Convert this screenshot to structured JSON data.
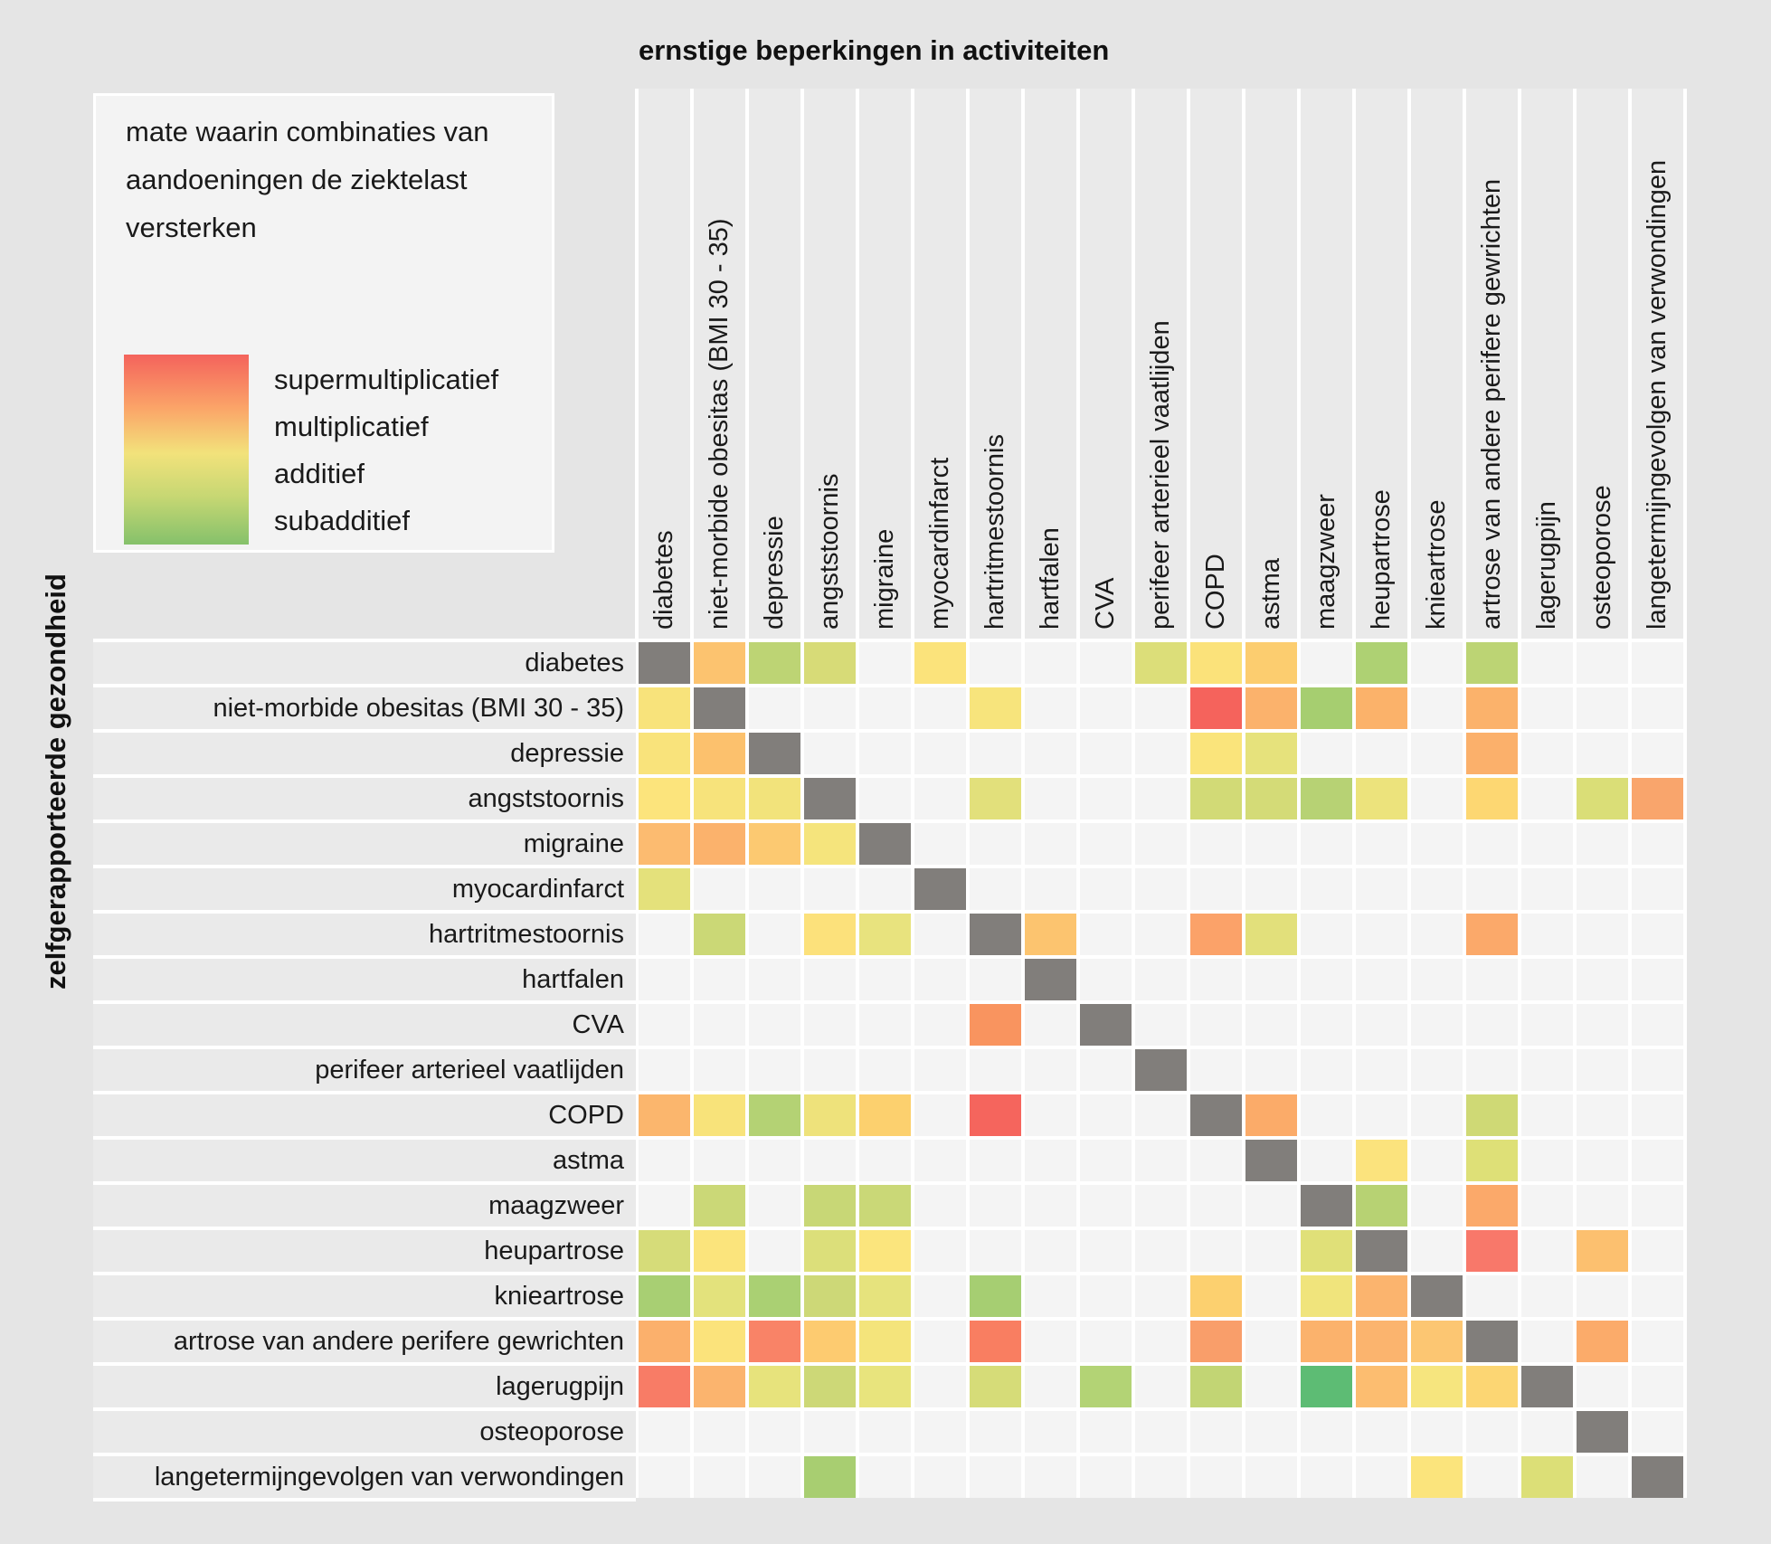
{
  "title": "ernstige beperkingen in activiteiten",
  "y_axis_title": "zelfgerapporteerde gezondheid",
  "legend": {
    "title_lines": [
      "mate waarin combinaties van",
      "aandoeningen de ziektelast",
      "versterken"
    ],
    "items": [
      "supermultiplicatief",
      "multiplicatief",
      "additief",
      "subadditief"
    ],
    "gradient_colors": [
      "#f4635c",
      "#fba468",
      "#f2e27b",
      "#c6d773",
      "#85c16b"
    ]
  },
  "conditions": [
    "diabetes",
    "niet-morbide obesitas (BMI 30 - 35)",
    "depressie",
    "angststoornis",
    "migraine",
    "myocardinfarct",
    "hartritmestoornis",
    "hartfalen",
    "CVA",
    "perifeer arterieel vaatlijden",
    "COPD",
    "astma",
    "maagzweer",
    "heupartrose",
    "knieartrose",
    "artrose van andere perifere gewrichten",
    "lagerugpijn",
    "osteoporose",
    "langetermijngevolgen van verwondingen"
  ],
  "chart_data": {
    "type": "heatmap",
    "title": "ernstige beperkingen in activiteiten",
    "xlabel": "ernstige beperkingen in activiteiten",
    "ylabel": "zelfgerapporteerde gezondheid",
    "legend_position": "top-left",
    "scale_order": [
      "supermultiplicatief",
      "multiplicatief",
      "additief",
      "subadditief"
    ],
    "diagonal_color": "#817e7b",
    "empty_color": "#f4f4f4",
    "cells": [
      [
        1,
        2,
        "#fcc36f",
        "multiplicatief"
      ],
      [
        1,
        3,
        "#bdd474",
        "subadditief"
      ],
      [
        1,
        4,
        "#d7db77",
        "subadditief"
      ],
      [
        1,
        6,
        "#fbe37b",
        "additief"
      ],
      [
        1,
        10,
        "#dcde79",
        "additief"
      ],
      [
        1,
        11,
        "#fbe27a",
        "additief"
      ],
      [
        1,
        12,
        "#fccd6f",
        "multiplicatief"
      ],
      [
        1,
        14,
        "#aed173",
        "subadditief"
      ],
      [
        1,
        16,
        "#bcd474",
        "subadditief"
      ],
      [
        2,
        1,
        "#f8e37b",
        "additief"
      ],
      [
        2,
        7,
        "#f7e47c",
        "additief"
      ],
      [
        2,
        11,
        "#f5635c",
        "supermultiplicatief"
      ],
      [
        2,
        12,
        "#fbb26c",
        "multiplicatief"
      ],
      [
        2,
        13,
        "#a6ce70",
        "subadditief"
      ],
      [
        2,
        14,
        "#fbb26a",
        "multiplicatief"
      ],
      [
        2,
        16,
        "#fbb26b",
        "multiplicatief"
      ],
      [
        3,
        1,
        "#f9e37b",
        "additief"
      ],
      [
        3,
        2,
        "#fcc16d",
        "multiplicatief"
      ],
      [
        3,
        11,
        "#fae47b",
        "additief"
      ],
      [
        3,
        12,
        "#e6e27c",
        "additief"
      ],
      [
        3,
        16,
        "#fbb06b",
        "multiplicatief"
      ],
      [
        4,
        1,
        "#fce47c",
        "additief"
      ],
      [
        4,
        2,
        "#f7e37b",
        "additief"
      ],
      [
        4,
        3,
        "#f2e37b",
        "additief"
      ],
      [
        4,
        7,
        "#e2e07b",
        "additief"
      ],
      [
        4,
        11,
        "#d2da76",
        "subadditief"
      ],
      [
        4,
        12,
        "#d4db77",
        "subadditief"
      ],
      [
        4,
        13,
        "#b7d274",
        "subadditief"
      ],
      [
        4,
        14,
        "#ece37c",
        "additief"
      ],
      [
        4,
        16,
        "#fdd772",
        "multiplicatief"
      ],
      [
        4,
        18,
        "#dade77",
        "additief"
      ],
      [
        4,
        19,
        "#f9a56c",
        "multiplicatief"
      ],
      [
        5,
        1,
        "#fcbb70",
        "multiplicatief"
      ],
      [
        5,
        2,
        "#fbb26c",
        "multiplicatief"
      ],
      [
        5,
        3,
        "#fcc971",
        "multiplicatief"
      ],
      [
        5,
        4,
        "#f5e47c",
        "additief"
      ],
      [
        6,
        1,
        "#e4e17b",
        "additief"
      ],
      [
        7,
        2,
        "#cbd876",
        "subadditief"
      ],
      [
        7,
        4,
        "#fce17b",
        "additief"
      ],
      [
        7,
        5,
        "#e8e37e",
        "additief"
      ],
      [
        7,
        8,
        "#fcc46f",
        "multiplicatief"
      ],
      [
        7,
        11,
        "#fba269",
        "multiplicatief"
      ],
      [
        7,
        12,
        "#e2e07b",
        "additief"
      ],
      [
        7,
        16,
        "#fba96a",
        "multiplicatief"
      ],
      [
        9,
        7,
        "#f9945f",
        "multiplicatief"
      ],
      [
        11,
        1,
        "#fbb66d",
        "multiplicatief"
      ],
      [
        11,
        2,
        "#f8e37a",
        "additief"
      ],
      [
        11,
        3,
        "#b4d274",
        "subadditief"
      ],
      [
        11,
        4,
        "#eee27b",
        "additief"
      ],
      [
        11,
        5,
        "#fcd06e",
        "multiplicatief"
      ],
      [
        11,
        7,
        "#f5655d",
        "supermultiplicatief"
      ],
      [
        11,
        12,
        "#fbab69",
        "multiplicatief"
      ],
      [
        11,
        16,
        "#cfd975",
        "subadditief"
      ],
      [
        12,
        14,
        "#fbe37d",
        "additief"
      ],
      [
        12,
        16,
        "#dee077",
        "additief"
      ],
      [
        13,
        2,
        "#cbd877",
        "subadditief"
      ],
      [
        13,
        4,
        "#c8d776",
        "subadditief"
      ],
      [
        13,
        5,
        "#cad877",
        "subadditief"
      ],
      [
        13,
        14,
        "#b7d273",
        "subadditief"
      ],
      [
        13,
        16,
        "#fba96a",
        "multiplicatief"
      ],
      [
        14,
        1,
        "#d6dc79",
        "subadditief"
      ],
      [
        14,
        2,
        "#fbe47c",
        "additief"
      ],
      [
        14,
        4,
        "#dcdf7a",
        "additief"
      ],
      [
        14,
        5,
        "#fbe57d",
        "additief"
      ],
      [
        14,
        13,
        "#e0e078",
        "additief"
      ],
      [
        14,
        16,
        "#f8786a",
        "supermultiplicatief"
      ],
      [
        14,
        18,
        "#fcc06f",
        "multiplicatief"
      ],
      [
        15,
        1,
        "#a8cf73",
        "subadditief"
      ],
      [
        15,
        2,
        "#e3e27c",
        "additief"
      ],
      [
        15,
        3,
        "#aad073",
        "subadditief"
      ],
      [
        15,
        4,
        "#cdd877",
        "subadditief"
      ],
      [
        15,
        5,
        "#e6e37d",
        "additief"
      ],
      [
        15,
        7,
        "#a6ce72",
        "subadditief"
      ],
      [
        15,
        11,
        "#fcd06f",
        "multiplicatief"
      ],
      [
        15,
        13,
        "#f0e47c",
        "additief"
      ],
      [
        15,
        14,
        "#fbb46e",
        "multiplicatief"
      ],
      [
        16,
        1,
        "#fbb06c",
        "multiplicatief"
      ],
      [
        16,
        2,
        "#fbe37b",
        "additief"
      ],
      [
        16,
        3,
        "#f98367",
        "supermultiplicatief"
      ],
      [
        16,
        4,
        "#fdcb70",
        "multiplicatief"
      ],
      [
        16,
        5,
        "#f4e47b",
        "additief"
      ],
      [
        16,
        7,
        "#f97e61",
        "supermultiplicatief"
      ],
      [
        16,
        11,
        "#f99e6a",
        "multiplicatief"
      ],
      [
        16,
        13,
        "#fbb26c",
        "multiplicatief"
      ],
      [
        16,
        14,
        "#fbb46e",
        "multiplicatief"
      ],
      [
        16,
        15,
        "#fcc672",
        "multiplicatief"
      ],
      [
        16,
        18,
        "#fbab6a",
        "multiplicatief"
      ],
      [
        17,
        1,
        "#f87c66",
        "supermultiplicatief"
      ],
      [
        17,
        2,
        "#fbb46e",
        "multiplicatief"
      ],
      [
        17,
        3,
        "#e7e37c",
        "additief"
      ],
      [
        17,
        4,
        "#cdd877",
        "subadditief"
      ],
      [
        17,
        5,
        "#e8e47d",
        "additief"
      ],
      [
        17,
        7,
        "#d6dc78",
        "subadditief"
      ],
      [
        17,
        9,
        "#b3d375",
        "subadditief"
      ],
      [
        17,
        11,
        "#c2d574",
        "subadditief"
      ],
      [
        17,
        13,
        "#5dbc74",
        "subadditief"
      ],
      [
        17,
        14,
        "#fcbd70",
        "multiplicatief"
      ],
      [
        17,
        15,
        "#f6e57e",
        "additief"
      ],
      [
        17,
        16,
        "#fcd673",
        "multiplicatief"
      ],
      [
        19,
        4,
        "#a8ce71",
        "subadditief"
      ],
      [
        19,
        15,
        "#fbe47c",
        "additief"
      ],
      [
        19,
        17,
        "#dcdf77",
        "additief"
      ]
    ]
  }
}
